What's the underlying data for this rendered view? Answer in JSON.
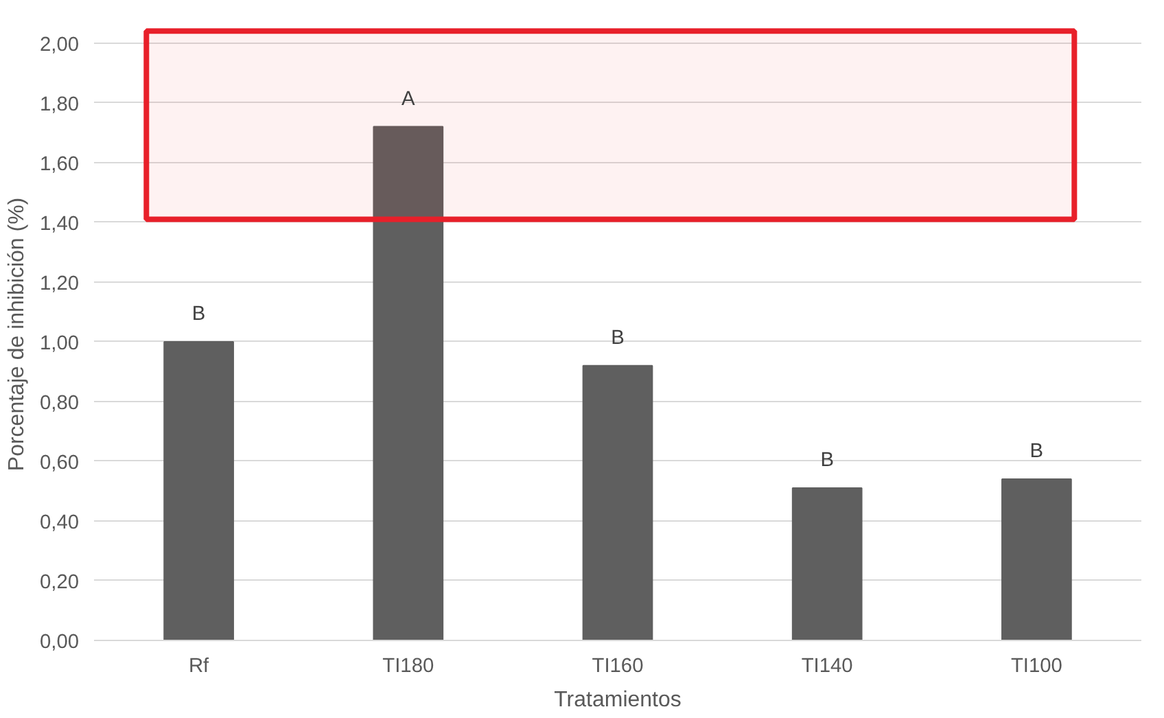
{
  "chart_data": {
    "type": "bar",
    "xlabel": "Tratamientos",
    "ylabel": "Porcentaje de inhibición (%)",
    "categories": [
      "Rf",
      "TI180",
      "TI160",
      "TI140",
      "TI100"
    ],
    "values": [
      1.0,
      1.72,
      0.92,
      0.51,
      0.54
    ],
    "color": "#5f5f5f",
    "ylim": [
      0,
      2.05
    ],
    "yticks": [
      {
        "value": 0,
        "label": "0,00"
      },
      {
        "value": 0.2,
        "label": "0,20"
      },
      {
        "value": 0.4,
        "label": "0,40"
      },
      {
        "value": 0.6,
        "label": "0,60"
      },
      {
        "value": 0.8,
        "label": "0,80"
      },
      {
        "value": 1.0,
        "label": "1,00"
      },
      {
        "value": 1.2,
        "label": "1,20"
      },
      {
        "value": 1.4,
        "label": "1,40"
      },
      {
        "value": 1.6,
        "label": "1,60"
      },
      {
        "value": 1.8,
        "label": "1,80"
      },
      {
        "value": 2.0,
        "label": "2,00"
      }
    ],
    "grid": "y",
    "annotations": [
      {
        "text": "B",
        "x": "Rf",
        "y": 1.0
      },
      {
        "text": "A",
        "x": "TI180",
        "y": 1.72
      },
      {
        "text": "B",
        "x": "TI160",
        "y": 0.92
      },
      {
        "text": "B",
        "x": "TI140",
        "y": 0.51
      },
      {
        "text": "B",
        "x": "TI100",
        "y": 0.54
      }
    ],
    "bands": [
      {
        "axis": "y",
        "from": 1.41,
        "to": 2.04,
        "color": "#e8202a"
      }
    ]
  }
}
